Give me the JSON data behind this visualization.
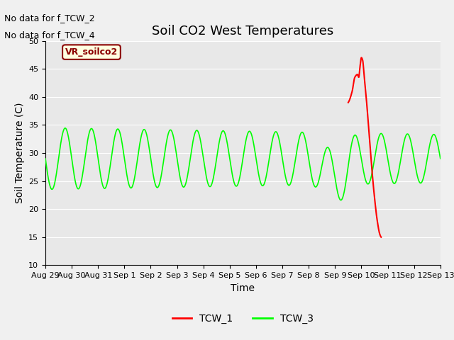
{
  "title": "Soil CO2 West Temperatures",
  "xlabel": "Time",
  "ylabel": "Soil Temperature (C)",
  "ylim": [
    10,
    50
  ],
  "no_data_texts": [
    "No data for f_TCW_2",
    "No data for f_TCW_4"
  ],
  "vr_label": "VR_soilco2",
  "plot_bg_color": "#e8e8e8",
  "fig_bg_color": "#f0f0f0",
  "grid_color": "#ffffff",
  "tcw1_color": "#ff0000",
  "tcw3_color": "#00ff00",
  "x_tick_labels": [
    "Aug 29",
    "Aug 30",
    "Aug 31",
    "Sep 1",
    "Sep 2",
    "Sep 3",
    "Sep 4",
    "Sep 5",
    "Sep 6",
    "Sep 7",
    "Sep 8",
    "Sep 9",
    "Sep 10",
    "Sep 11",
    "Sep 12",
    "Sep 13"
  ],
  "title_fontsize": 13,
  "axis_label_fontsize": 10,
  "tick_fontsize": 8,
  "nodata_fontsize": 9,
  "vr_fontsize": 9,
  "legend_fontsize": 10
}
